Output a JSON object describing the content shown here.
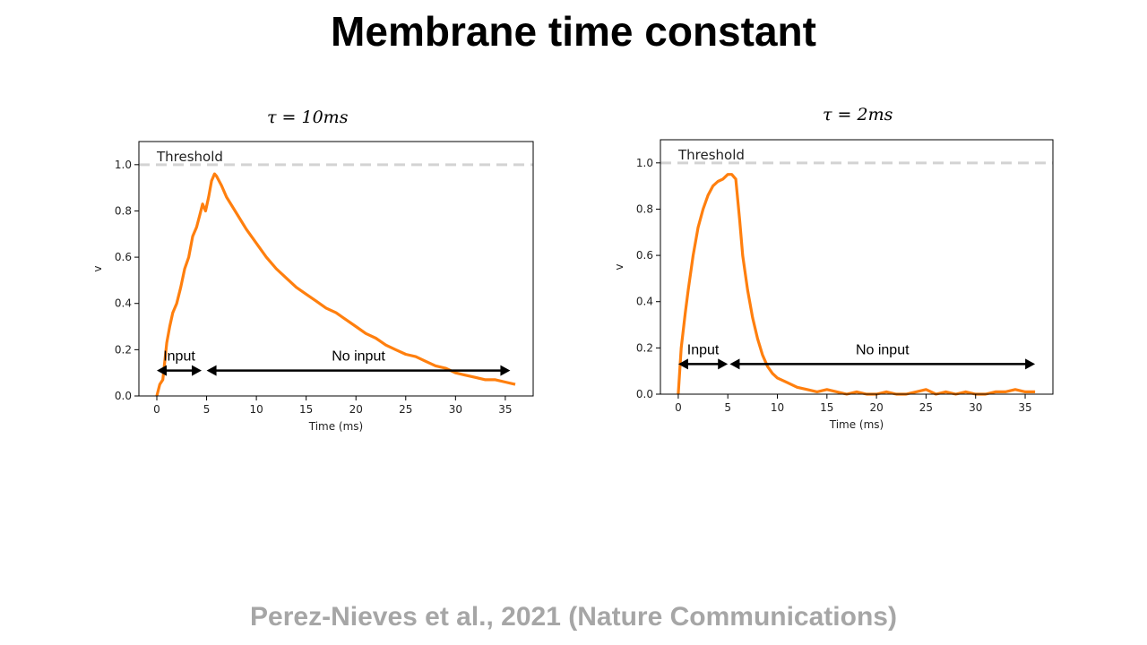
{
  "slide": {
    "title": "Membrane time constant",
    "citation": "Perez-Nieves et al., 2021 (Nature Communications)"
  },
  "colors": {
    "trace": "#ff7f0e",
    "threshold": "#d3d3d3",
    "arrow": "#000000",
    "axis": "#000000"
  },
  "chart_data": [
    {
      "type": "line",
      "title": "τ = 10ms",
      "xlabel": "Time (ms)",
      "ylabel": "v",
      "xlim": [
        -1.8,
        37.8
      ],
      "ylim": [
        0,
        1.1
      ],
      "xticks": [
        0,
        5,
        10,
        15,
        20,
        25,
        30,
        35
      ],
      "yticks": [
        0.0,
        0.2,
        0.4,
        0.6,
        0.8,
        1.0
      ],
      "grid": false,
      "threshold": {
        "value": 1.0,
        "label": "Threshold"
      },
      "series": [
        {
          "x": [
            0,
            0.3,
            0.6,
            1,
            1.3,
            1.6,
            2,
            2.4,
            2.8,
            3.2,
            3.6,
            4,
            4.3,
            4.6,
            4.9,
            5.2,
            5.5,
            5.8,
            6,
            6.5,
            7,
            8,
            9,
            10,
            11,
            12,
            13,
            14,
            15,
            16,
            17,
            18,
            19,
            20,
            21,
            22,
            23,
            24,
            25,
            26,
            27,
            28,
            29,
            30,
            31,
            32,
            33,
            34,
            35,
            36
          ],
          "y": [
            0.0,
            0.05,
            0.07,
            0.23,
            0.3,
            0.36,
            0.4,
            0.47,
            0.55,
            0.6,
            0.69,
            0.73,
            0.78,
            0.83,
            0.8,
            0.86,
            0.93,
            0.96,
            0.95,
            0.91,
            0.86,
            0.79,
            0.72,
            0.66,
            0.6,
            0.55,
            0.51,
            0.47,
            0.44,
            0.41,
            0.38,
            0.36,
            0.33,
            0.3,
            0.27,
            0.25,
            0.22,
            0.2,
            0.18,
            0.17,
            0.15,
            0.13,
            0.12,
            0.1,
            0.09,
            0.08,
            0.07,
            0.07,
            0.06,
            0.05
          ]
        }
      ],
      "annotations": [
        {
          "text": "Input",
          "x_start": 0,
          "x_end": 4.5,
          "y": 0.11
        },
        {
          "text": "No input",
          "x_start": 5,
          "x_end": 35.5,
          "y": 0.11
        }
      ]
    },
    {
      "type": "line",
      "title": "τ = 2ms",
      "xlabel": "Time (ms)",
      "ylabel": "v",
      "xlim": [
        -1.8,
        37.8
      ],
      "ylim": [
        0,
        1.1
      ],
      "xticks": [
        0,
        5,
        10,
        15,
        20,
        25,
        30,
        35
      ],
      "yticks": [
        0.0,
        0.2,
        0.4,
        0.6,
        0.8,
        1.0
      ],
      "grid": false,
      "threshold": {
        "value": 1.0,
        "label": "Threshold"
      },
      "series": [
        {
          "x": [
            0,
            0.3,
            0.7,
            1,
            1.5,
            2,
            2.5,
            3,
            3.5,
            4,
            4.5,
            5,
            5.4,
            5.8,
            6.2,
            6.5,
            7,
            7.5,
            8,
            8.5,
            9,
            9.5,
            10,
            11,
            12,
            13,
            14,
            15,
            16,
            17,
            18,
            19,
            20,
            21,
            22,
            23,
            24,
            25,
            26,
            27,
            28,
            29,
            30,
            31,
            32,
            33,
            34,
            35,
            36
          ],
          "y": [
            0.0,
            0.2,
            0.35,
            0.45,
            0.6,
            0.72,
            0.8,
            0.86,
            0.9,
            0.92,
            0.93,
            0.95,
            0.95,
            0.93,
            0.75,
            0.6,
            0.45,
            0.33,
            0.24,
            0.17,
            0.12,
            0.09,
            0.07,
            0.05,
            0.03,
            0.02,
            0.01,
            0.02,
            0.01,
            0.0,
            0.01,
            0.0,
            0.0,
            0.01,
            0.0,
            0.0,
            0.01,
            0.02,
            0.0,
            0.01,
            0.0,
            0.01,
            0.0,
            0.0,
            0.01,
            0.01,
            0.02,
            0.01,
            0.01
          ]
        }
      ],
      "annotations": [
        {
          "text": "Input",
          "x_start": 0,
          "x_end": 5,
          "y": 0.13
        },
        {
          "text": "No input",
          "x_start": 5.2,
          "x_end": 36,
          "y": 0.13
        }
      ]
    }
  ]
}
